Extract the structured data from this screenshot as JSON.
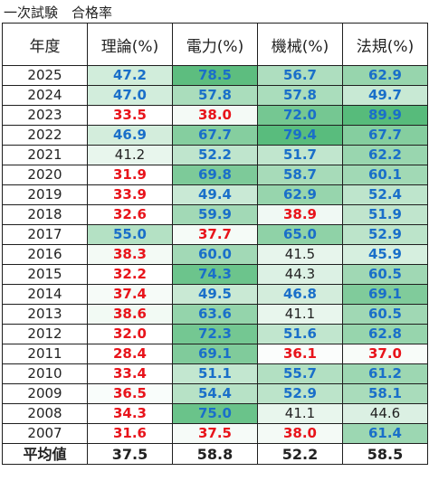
{
  "title": "一次試験　合格率",
  "headers": [
    "年度",
    "理論(%)",
    "電力(%)",
    "機械(%)",
    "法規(%)"
  ],
  "rows": [
    {
      "year": "2025",
      "values": [
        "47.2",
        "78.5",
        "56.7",
        "62.9"
      ]
    },
    {
      "year": "2024",
      "values": [
        "47.0",
        "57.8",
        "57.8",
        "49.7"
      ]
    },
    {
      "year": "2023",
      "values": [
        "33.5",
        "38.0",
        "72.0",
        "89.9"
      ]
    },
    {
      "year": "2022",
      "values": [
        "46.9",
        "67.7",
        "79.4",
        "67.7"
      ]
    },
    {
      "year": "2021",
      "values": [
        "41.2",
        "52.2",
        "51.7",
        "62.2"
      ]
    },
    {
      "year": "2020",
      "values": [
        "31.9",
        "69.8",
        "58.7",
        "60.1"
      ]
    },
    {
      "year": "2019",
      "values": [
        "33.9",
        "49.4",
        "62.9",
        "52.4"
      ]
    },
    {
      "year": "2018",
      "values": [
        "32.6",
        "59.9",
        "38.9",
        "51.9"
      ]
    },
    {
      "year": "2017",
      "values": [
        "55.0",
        "37.7",
        "65.0",
        "52.9"
      ]
    },
    {
      "year": "2016",
      "values": [
        "38.3",
        "60.0",
        "41.5",
        "45.9"
      ]
    },
    {
      "year": "2015",
      "values": [
        "32.2",
        "74.3",
        "44.3",
        "60.5"
      ]
    },
    {
      "year": "2014",
      "values": [
        "37.4",
        "49.5",
        "46.8",
        "69.1"
      ]
    },
    {
      "year": "2013",
      "values": [
        "38.6",
        "63.6",
        "41.1",
        "60.5"
      ]
    },
    {
      "year": "2012",
      "values": [
        "32.0",
        "72.3",
        "51.6",
        "62.8"
      ]
    },
    {
      "year": "2011",
      "values": [
        "28.4",
        "69.1",
        "36.1",
        "37.0"
      ]
    },
    {
      "year": "2010",
      "values": [
        "33.4",
        "51.1",
        "55.7",
        "61.2"
      ]
    },
    {
      "year": "2009",
      "values": [
        "36.5",
        "54.4",
        "52.9",
        "58.1"
      ]
    },
    {
      "year": "2008",
      "values": [
        "34.3",
        "75.0",
        "41.1",
        "44.6"
      ]
    },
    {
      "year": "2007",
      "values": [
        "31.6",
        "37.5",
        "38.0",
        "61.4"
      ]
    }
  ],
  "average": {
    "label": "平均値",
    "values": [
      "37.5",
      "58.8",
      "52.2",
      "58.5"
    ]
  },
  "colors": {
    "high_text": "#1a6fc9",
    "low_text": "#e8141b",
    "scale_low": "#ffffff",
    "scale_high": "#57bb7b"
  },
  "thresholds": {
    "high": 45,
    "low": 40
  }
}
